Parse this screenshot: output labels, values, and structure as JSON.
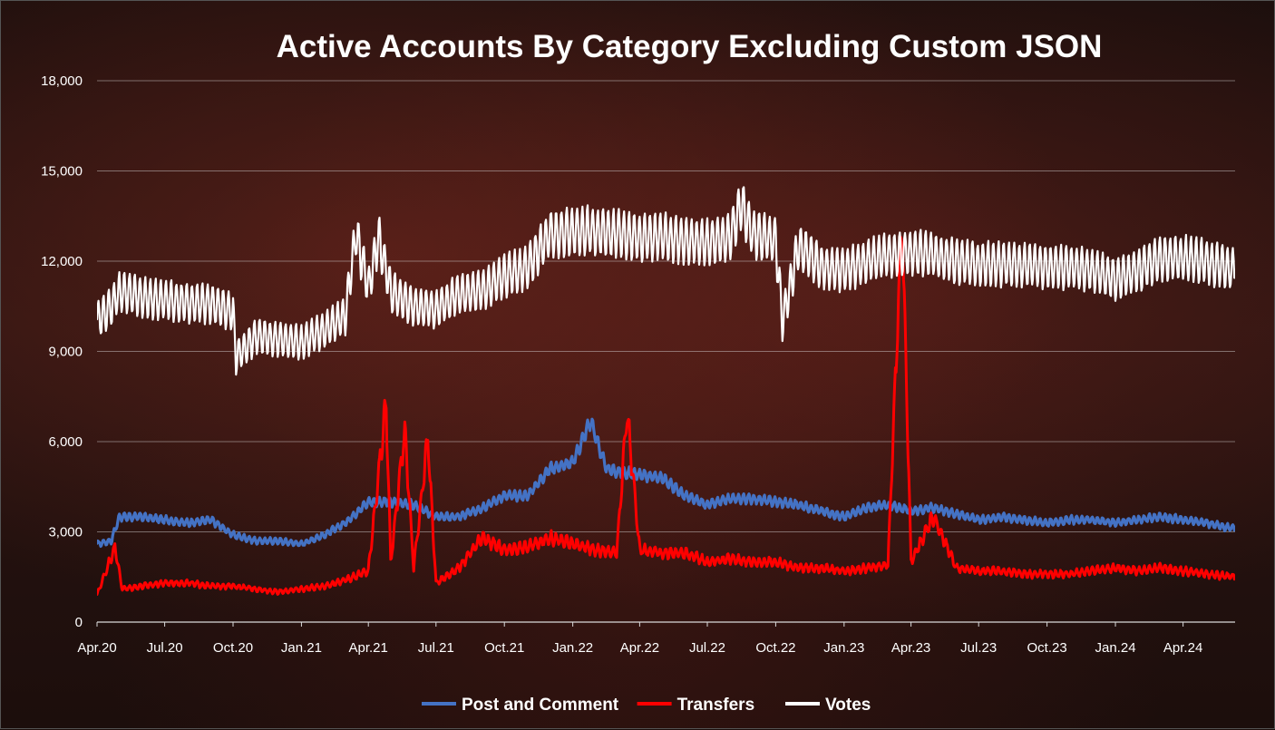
{
  "chart_data": {
    "type": "line",
    "title": "Active Accounts By Category Excluding Custom JSON",
    "xlabel": "",
    "ylabel": "",
    "ylim": [
      0,
      18000
    ],
    "yticks": [
      0,
      3000,
      6000,
      9000,
      12000,
      15000,
      18000
    ],
    "ytick_labels": [
      "0",
      "3,000",
      "6,000",
      "9,000",
      "12,000",
      "15,000",
      "18,000"
    ],
    "xlim": [
      "2020-04-01",
      "2024-06-10"
    ],
    "xtick_labels": [
      "Apr.20",
      "Jul.20",
      "Oct.20",
      "Jan.21",
      "Apr.21",
      "Jul.21",
      "Oct.21",
      "Jan.22",
      "Apr.22",
      "Jul.22",
      "Oct.22",
      "Jan.23",
      "Apr.23",
      "Jul.23",
      "Oct.23",
      "Jan.24",
      "Apr.24"
    ],
    "xtick_dates": [
      "2020-04-01",
      "2020-07-01",
      "2020-10-01",
      "2021-01-01",
      "2021-04-01",
      "2021-07-01",
      "2021-10-01",
      "2022-01-01",
      "2022-04-01",
      "2022-07-01",
      "2022-10-01",
      "2023-01-01",
      "2023-04-01",
      "2023-07-01",
      "2023-10-01",
      "2024-01-01",
      "2024-04-01"
    ],
    "grid": "horizontal",
    "legend": "bottom",
    "series": [
      {
        "name": "Post and Comment",
        "color": "#4472C4",
        "x": [
          "2020-04-01",
          "2020-04-20",
          "2020-05-01",
          "2020-06-01",
          "2020-07-01",
          "2020-08-01",
          "2020-09-01",
          "2020-10-01",
          "2020-11-01",
          "2020-12-01",
          "2021-01-01",
          "2021-02-01",
          "2021-03-01",
          "2021-04-01",
          "2021-05-01",
          "2021-06-01",
          "2021-07-01",
          "2021-08-01",
          "2021-09-01",
          "2021-10-01",
          "2021-11-01",
          "2021-12-01",
          "2022-01-01",
          "2022-01-25",
          "2022-02-15",
          "2022-03-01",
          "2022-04-01",
          "2022-05-01",
          "2022-06-01",
          "2022-07-01",
          "2022-08-01",
          "2022-09-01",
          "2022-10-01",
          "2022-11-01",
          "2022-12-01",
          "2023-01-01",
          "2023-02-01",
          "2023-03-01",
          "2023-04-01",
          "2023-05-01",
          "2023-06-01",
          "2023-07-01",
          "2023-08-01",
          "2023-09-01",
          "2023-10-01",
          "2023-11-01",
          "2023-12-01",
          "2024-01-01",
          "2024-02-01",
          "2024-03-01",
          "2024-04-01",
          "2024-05-01",
          "2024-06-10"
        ],
        "y": [
          2600,
          2700,
          3500,
          3500,
          3400,
          3300,
          3400,
          2900,
          2700,
          2700,
          2600,
          2900,
          3300,
          4000,
          4000,
          3900,
          3500,
          3500,
          3800,
          4200,
          4200,
          5100,
          5300,
          6700,
          5100,
          5000,
          4900,
          4800,
          4200,
          3900,
          4100,
          4100,
          4000,
          3900,
          3700,
          3500,
          3800,
          3900,
          3700,
          3800,
          3600,
          3400,
          3500,
          3400,
          3300,
          3400,
          3400,
          3300,
          3400,
          3500,
          3400,
          3300,
          3100
        ]
      },
      {
        "name": "Transfers",
        "color": "#FF0000",
        "x": [
          "2020-04-01",
          "2020-04-25",
          "2020-05-05",
          "2020-06-01",
          "2020-07-01",
          "2020-08-01",
          "2020-09-01",
          "2020-10-01",
          "2020-11-01",
          "2020-12-01",
          "2021-01-01",
          "2021-02-01",
          "2021-03-01",
          "2021-04-01",
          "2021-04-25",
          "2021-05-01",
          "2021-05-20",
          "2021-06-01",
          "2021-06-20",
          "2021-07-01",
          "2021-08-01",
          "2021-09-01",
          "2021-10-01",
          "2021-11-01",
          "2021-12-01",
          "2022-01-01",
          "2022-02-01",
          "2022-03-01",
          "2022-03-15",
          "2022-04-01",
          "2022-05-01",
          "2022-06-01",
          "2022-07-01",
          "2022-08-01",
          "2022-09-01",
          "2022-10-01",
          "2022-11-01",
          "2022-12-01",
          "2023-01-01",
          "2023-02-01",
          "2023-03-01",
          "2023-03-20",
          "2023-04-01",
          "2023-05-01",
          "2023-06-01",
          "2023-07-01",
          "2023-08-01",
          "2023-09-01",
          "2023-10-01",
          "2023-11-01",
          "2023-12-01",
          "2024-01-01",
          "2024-02-01",
          "2024-03-01",
          "2024-04-01",
          "2024-05-01",
          "2024-06-10"
        ],
        "y": [
          900,
          2500,
          1100,
          1200,
          1300,
          1300,
          1200,
          1200,
          1100,
          1000,
          1100,
          1200,
          1400,
          1700,
          7300,
          2000,
          6400,
          1800,
          6100,
          1300,
          1800,
          2800,
          2400,
          2500,
          2800,
          2600,
          2400,
          2300,
          7000,
          2400,
          2300,
          2300,
          2000,
          2100,
          2000,
          2000,
          1800,
          1800,
          1700,
          1800,
          1900,
          13600,
          2000,
          3500,
          1800,
          1700,
          1700,
          1600,
          1600,
          1600,
          1700,
          1800,
          1700,
          1800,
          1700,
          1600,
          1500
        ]
      },
      {
        "name": "Votes",
        "color": "#FFFFFF",
        "x": [
          "2020-04-01",
          "2020-04-20",
          "2020-05-01",
          "2020-06-01",
          "2020-07-01",
          "2020-08-01",
          "2020-09-01",
          "2020-10-01",
          "2020-10-05",
          "2020-11-01",
          "2020-12-01",
          "2021-01-01",
          "2021-02-01",
          "2021-03-01",
          "2021-03-15",
          "2021-04-01",
          "2021-04-15",
          "2021-05-01",
          "2021-06-01",
          "2021-07-01",
          "2021-08-01",
          "2021-09-01",
          "2021-10-01",
          "2021-11-01",
          "2021-12-01",
          "2022-01-01",
          "2022-02-01",
          "2022-03-01",
          "2022-04-01",
          "2022-05-01",
          "2022-06-01",
          "2022-07-01",
          "2022-08-01",
          "2022-08-15",
          "2022-09-01",
          "2022-10-01",
          "2022-10-10",
          "2022-11-01",
          "2022-12-01",
          "2023-01-01",
          "2023-02-01",
          "2023-03-01",
          "2023-04-01",
          "2023-05-01",
          "2023-06-01",
          "2023-07-01",
          "2023-08-01",
          "2023-09-01",
          "2023-10-01",
          "2023-11-01",
          "2023-12-01",
          "2024-01-01",
          "2024-02-01",
          "2024-03-01",
          "2024-04-01",
          "2024-05-01",
          "2024-06-10"
        ],
        "y": [
          10000,
          10500,
          11000,
          10800,
          10700,
          10600,
          10600,
          10300,
          8800,
          9500,
          9400,
          9300,
          9700,
          10200,
          12900,
          11100,
          12800,
          11000,
          10500,
          10400,
          10900,
          11000,
          11500,
          11800,
          12900,
          13000,
          13000,
          12900,
          12800,
          12800,
          12700,
          12600,
          12800,
          13900,
          12900,
          12700,
          10000,
          12500,
          11800,
          11700,
          12000,
          12200,
          12300,
          12200,
          12000,
          11900,
          11900,
          11900,
          11800,
          11800,
          11700,
          11400,
          11700,
          12100,
          12100,
          12000,
          11700
        ]
      }
    ]
  }
}
